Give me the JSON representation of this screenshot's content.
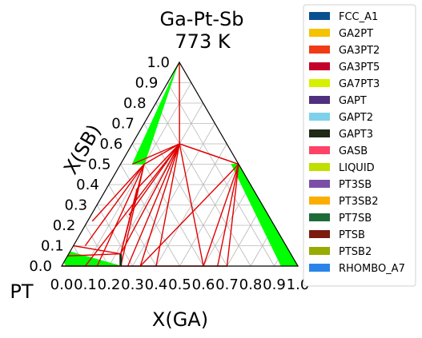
{
  "chart_data": {
    "type": "ternary-phase-diagram",
    "title": "Ga-Pt-Sb",
    "subtitle": "773  K",
    "corner_labels": {
      "left_bottom": "PT"
    },
    "xlabel": "X(GA)",
    "ylabel": "X(SB)",
    "xlim": [
      0,
      1
    ],
    "ylim": [
      0,
      1
    ],
    "x_ticks": [
      0.0,
      0.1,
      0.2,
      0.3,
      0.4,
      0.5,
      0.6,
      0.7,
      0.8,
      0.9,
      1.0
    ],
    "x_tick_labels": [
      "0.0",
      "0.1",
      "0.2",
      "0.3",
      "0.4",
      "0.5",
      "0.6",
      "0.7",
      "0.8",
      "0.9",
      "1.0"
    ],
    "y_ticks": [
      0.0,
      0.1,
      0.2,
      0.3,
      0.4,
      0.5,
      0.6,
      0.7,
      0.8,
      0.9,
      1.0
    ],
    "y_tick_labels": [
      "0.0",
      "0.1",
      "0.2",
      "0.3",
      "0.4",
      "0.5",
      "0.6",
      "0.7",
      "0.8",
      "0.9",
      "1.0"
    ],
    "grid": true,
    "legend_position": "right",
    "legend": [
      {
        "name": "FCC_A1",
        "color": "#08508f"
      },
      {
        "name": "GA2PT",
        "color": "#f5c200"
      },
      {
        "name": "GA3PT2",
        "color": "#f03b17"
      },
      {
        "name": "GA3PT5",
        "color": "#c2002a"
      },
      {
        "name": "GA7PT3",
        "color": "#d7f000"
      },
      {
        "name": "GAPT",
        "color": "#4f2f7e"
      },
      {
        "name": "GAPT2",
        "color": "#7fd1ea"
      },
      {
        "name": "GAPT3",
        "color": "#1f2916"
      },
      {
        "name": "GASB",
        "color": "#ff4265"
      },
      {
        "name": "LIQUID",
        "color": "#bfdf00"
      },
      {
        "name": "PT3SB",
        "color": "#7b4fa7"
      },
      {
        "name": "PT3SB2",
        "color": "#fcae00"
      },
      {
        "name": "PT7SB",
        "color": "#1e6b3a"
      },
      {
        "name": "PTSB",
        "color": "#7b1a10"
      },
      {
        "name": "PTSB2",
        "color": "#98ab00"
      },
      {
        "name": "RHOMBO_A7",
        "color": "#2a84e8"
      }
    ],
    "two_phase_regions": [
      {
        "color": "#00ff00",
        "points": [
          [
            0.0,
            1.0
          ],
          [
            0.05,
            0.5
          ],
          [
            0.1,
            0.5
          ],
          [
            0.0,
            0.98
          ]
        ]
      },
      {
        "color": "#00ff00",
        "points": [
          [
            0.5,
            0.5
          ],
          [
            1.0,
            0.0
          ],
          [
            0.93,
            0.0
          ],
          [
            0.47,
            0.5
          ]
        ]
      },
      {
        "color": "#00ff00",
        "points": [
          [
            0.0,
            0.07
          ],
          [
            0.25,
            0.0
          ],
          [
            0.02,
            0.0
          ],
          [
            0.0,
            0.02
          ]
        ]
      }
    ],
    "tie_line_fans": [
      {
        "apex": [
          0.2,
          0.6
        ],
        "targets": [
          [
            0.0,
            1.0
          ],
          [
            0.1,
            0.5
          ],
          [
            0.05,
            0.5
          ],
          [
            0.22,
            0.06
          ],
          [
            0.28,
            0.0
          ],
          [
            0.333,
            0.0
          ],
          [
            0.4,
            0.0
          ],
          [
            0.5,
            0.5
          ],
          [
            0.6,
            0.0
          ],
          [
            0.1,
            0.0
          ],
          [
            0.13,
            0.38
          ],
          [
            0.16,
            0.25
          ]
        ]
      },
      {
        "apex": [
          0.5,
          0.5
        ],
        "targets": [
          [
            0.6,
            0.0
          ],
          [
            0.7,
            0.0
          ],
          [
            0.66,
            0.0
          ],
          [
            0.333,
            0.0
          ],
          [
            0.2,
            0.6
          ]
        ]
      },
      {
        "apex": [
          0.1,
          0.5
        ],
        "targets": [
          [
            0.02,
            0.22
          ],
          [
            0.22,
            0.06
          ],
          [
            0.25,
            0.0
          ],
          [
            0.15,
            0.0
          ],
          [
            0.05,
            0.1
          ]
        ]
      },
      {
        "apex": [
          0.22,
          0.06
        ],
        "targets": [
          [
            0.0,
            0.1
          ],
          [
            0.0,
            0.05
          ],
          [
            0.13,
            0.38
          ],
          [
            0.25,
            0.0
          ]
        ]
      },
      {
        "apex": [
          0.64,
          0.0
        ],
        "targets": [
          [
            0.0,
            0.0
          ],
          [
            0.7,
            0.0
          ]
        ]
      }
    ]
  }
}
